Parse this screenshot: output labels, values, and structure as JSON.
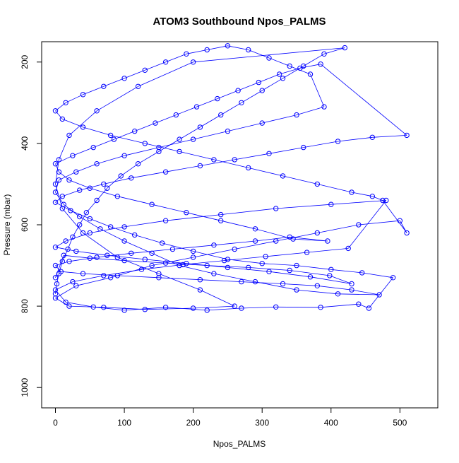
{
  "chart_data": {
    "type": "scatter",
    "title": "ATOM3 Southbound Npos_PALMS",
    "xlabel": "Npos_PALMS",
    "ylabel": "Pressure (mbar)",
    "xlim": [
      -20,
      555
    ],
    "ylim": [
      1050,
      150
    ],
    "y_reversed": true,
    "x_ticks": [
      0,
      100,
      200,
      300,
      400,
      500
    ],
    "y_ticks": [
      200,
      400,
      600,
      800,
      1000
    ],
    "grid": false,
    "legend": "none",
    "color": "#0000ff",
    "marker": "open-circle",
    "connected": true,
    "series": [
      {
        "points": [
          [
            0,
            770
          ],
          [
            2,
            745
          ],
          [
            5,
            720
          ],
          [
            10,
            690
          ],
          [
            18,
            660
          ],
          [
            25,
            630
          ],
          [
            35,
            600
          ],
          [
            45,
            570
          ],
          [
            60,
            540
          ],
          [
            75,
            510
          ],
          [
            95,
            480
          ],
          [
            120,
            450
          ],
          [
            150,
            420
          ],
          [
            180,
            390
          ],
          [
            210,
            360
          ],
          [
            240,
            330
          ],
          [
            270,
            300
          ],
          [
            300,
            270
          ],
          [
            330,
            240
          ],
          [
            360,
            210
          ],
          [
            390,
            180
          ],
          [
            420,
            165
          ],
          [
            200,
            200
          ],
          [
            120,
            260
          ],
          [
            60,
            320
          ],
          [
            20,
            380
          ],
          [
            5,
            440
          ],
          [
            0,
            500
          ],
          [
            10,
            560
          ],
          [
            40,
            620
          ],
          [
            90,
            680
          ],
          [
            150,
            720
          ],
          [
            210,
            760
          ],
          [
            260,
            800
          ],
          [
            200,
            805
          ],
          [
            130,
            808
          ],
          [
            70,
            803
          ],
          [
            20,
            800
          ],
          [
            0,
            780
          ],
          [
            30,
            750
          ],
          [
            80,
            730
          ],
          [
            140,
            700
          ],
          [
            200,
            680
          ],
          [
            260,
            660
          ],
          [
            320,
            640
          ],
          [
            380,
            620
          ],
          [
            440,
            600
          ],
          [
            500,
            590
          ],
          [
            510,
            620
          ],
          [
            475,
            540
          ],
          [
            460,
            530
          ],
          [
            430,
            520
          ],
          [
            380,
            500
          ],
          [
            330,
            480
          ],
          [
            280,
            460
          ],
          [
            230,
            440
          ],
          [
            180,
            420
          ],
          [
            130,
            400
          ],
          [
            80,
            380
          ],
          [
            40,
            360
          ],
          [
            10,
            340
          ],
          [
            0,
            320
          ],
          [
            15,
            300
          ],
          [
            40,
            280
          ],
          [
            70,
            260
          ],
          [
            100,
            240
          ],
          [
            130,
            220
          ],
          [
            160,
            200
          ],
          [
            190,
            180
          ],
          [
            220,
            170
          ],
          [
            250,
            160
          ],
          [
            280,
            170
          ],
          [
            310,
            190
          ],
          [
            340,
            210
          ],
          [
            370,
            230
          ],
          [
            390,
            310
          ],
          [
            350,
            330
          ],
          [
            300,
            350
          ],
          [
            250,
            370
          ],
          [
            200,
            390
          ],
          [
            150,
            410
          ],
          [
            100,
            430
          ],
          [
            60,
            450
          ],
          [
            30,
            470
          ],
          [
            5,
            490
          ],
          [
            0,
            520
          ],
          [
            12,
            550
          ],
          [
            35,
            580
          ],
          [
            65,
            610
          ],
          [
            100,
            640
          ],
          [
            140,
            670
          ],
          [
            180,
            700
          ],
          [
            230,
            720
          ],
          [
            290,
            740
          ],
          [
            350,
            760
          ],
          [
            410,
            770
          ],
          [
            470,
            772
          ],
          [
            430,
            760
          ],
          [
            380,
            750
          ],
          [
            330,
            745
          ],
          [
            270,
            740
          ],
          [
            210,
            735
          ],
          [
            150,
            730
          ],
          [
            90,
            725
          ],
          [
            40,
            720
          ],
          [
            8,
            715
          ],
          [
            0,
            700
          ],
          [
            20,
            690
          ],
          [
            60,
            680
          ],
          [
            110,
            670
          ],
          [
            170,
            660
          ],
          [
            230,
            650
          ],
          [
            290,
            640
          ],
          [
            340,
            630
          ],
          [
            395,
            640
          ],
          [
            345,
            635
          ],
          [
            290,
            610
          ],
          [
            240,
            590
          ],
          [
            190,
            570
          ],
          [
            140,
            550
          ],
          [
            90,
            530
          ],
          [
            50,
            510
          ],
          [
            20,
            490
          ],
          [
            5,
            470
          ],
          [
            0,
            450
          ],
          [
            25,
            430
          ],
          [
            55,
            410
          ],
          [
            85,
            390
          ],
          [
            115,
            370
          ],
          [
            145,
            350
          ],
          [
            175,
            330
          ],
          [
            205,
            310
          ],
          [
            235,
            290
          ],
          [
            265,
            270
          ],
          [
            295,
            250
          ],
          [
            325,
            230
          ],
          [
            355,
            215
          ],
          [
            385,
            205
          ],
          [
            510,
            380
          ],
          [
            460,
            385
          ],
          [
            410,
            395
          ],
          [
            360,
            410
          ],
          [
            310,
            425
          ],
          [
            260,
            440
          ],
          [
            210,
            455
          ],
          [
            160,
            470
          ],
          [
            110,
            485
          ],
          [
            70,
            500
          ],
          [
            35,
            515
          ],
          [
            10,
            530
          ],
          [
            0,
            545
          ],
          [
            22,
            565
          ],
          [
            50,
            585
          ],
          [
            80,
            605
          ],
          [
            115,
            625
          ],
          [
            155,
            645
          ],
          [
            200,
            665
          ],
          [
            250,
            685
          ],
          [
            300,
            695
          ],
          [
            350,
            700
          ],
          [
            400,
            710
          ],
          [
            445,
            718
          ],
          [
            490,
            730
          ],
          [
            455,
            805
          ],
          [
            440,
            795
          ],
          [
            385,
            803
          ],
          [
            320,
            802
          ],
          [
            270,
            805
          ],
          [
            220,
            810
          ],
          [
            160,
            803
          ],
          [
            100,
            810
          ],
          [
            55,
            802
          ],
          [
            15,
            790
          ],
          [
            0,
            760
          ],
          [
            25,
            740
          ],
          [
            70,
            725
          ],
          [
            125,
            710
          ],
          [
            185,
            698
          ],
          [
            245,
            688
          ],
          [
            305,
            678
          ],
          [
            365,
            668
          ],
          [
            425,
            658
          ],
          [
            480,
            540
          ],
          [
            400,
            550
          ],
          [
            320,
            560
          ],
          [
            240,
            575
          ],
          [
            160,
            590
          ],
          [
            100,
            605
          ],
          [
            50,
            620
          ],
          [
            15,
            640
          ],
          [
            0,
            655
          ],
          [
            30,
            665
          ],
          [
            75,
            675
          ],
          [
            130,
            685
          ],
          [
            190,
            695
          ],
          [
            250,
            705
          ],
          [
            310,
            715
          ],
          [
            370,
            728
          ],
          [
            430,
            745
          ],
          [
            398,
            725
          ],
          [
            340,
            712
          ],
          [
            280,
            705
          ],
          [
            220,
            700
          ],
          [
            160,
            694
          ],
          [
            100,
            688
          ],
          [
            50,
            682
          ],
          [
            12,
            675
          ],
          [
            0,
            730
          ]
        ]
      }
    ]
  }
}
